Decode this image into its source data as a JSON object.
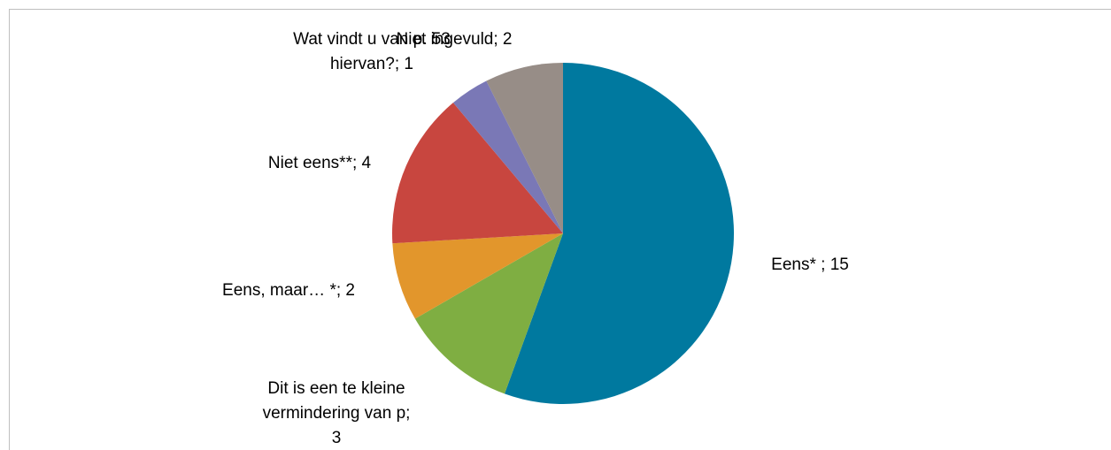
{
  "chart_data": {
    "type": "pie",
    "values": [
      15,
      3,
      2,
      4,
      1,
      2
    ],
    "value_labels": [
      [
        "Eens* ; 15"
      ],
      [
        "Dit is een te kleine",
        "vermindering van p;",
        "3"
      ],
      [
        "Eens, maar… *; 2"
      ],
      [
        "Niet eens**; 4"
      ],
      [
        "Wat vindt u van p. 53",
        "hiervan?; 1"
      ],
      [
        "Niet ingevuld; 2"
      ]
    ],
    "colors": [
      "#00799f",
      "#7fae42",
      "#e2962c",
      "#c8463f",
      "#7a78b6",
      "#978d87"
    ]
  }
}
